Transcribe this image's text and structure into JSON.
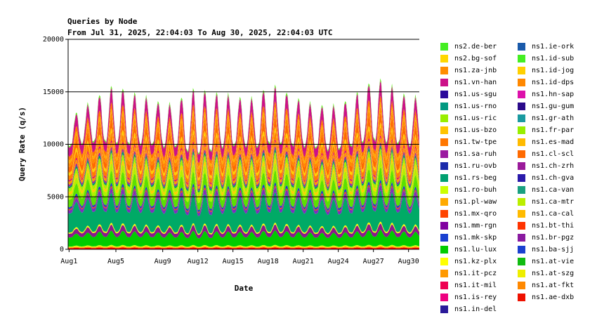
{
  "chart_data": {
    "type": "area",
    "stacked": true,
    "title": "Queries by Node",
    "subtitle": "From Jul 31, 2025, 22:04:03 To Aug 30, 2025, 22:04:03 UTC",
    "xlabel": "Date",
    "ylabel": "Query Rate (q/s)",
    "xticks": [
      "Aug1",
      "Aug5",
      "Aug9",
      "Aug12",
      "Aug15",
      "Aug18",
      "Aug21",
      "Aug24",
      "Aug27",
      "Aug30"
    ],
    "yticks": [
      "0",
      "5000",
      "10000",
      "15000",
      "20000"
    ],
    "ylim": [
      0,
      20000
    ],
    "grid": true,
    "legend_position": "right",
    "total_envelope": {
      "days": [
        1,
        2,
        3,
        4,
        5,
        6,
        7,
        8,
        9,
        10,
        11,
        12,
        13,
        14,
        15,
        16,
        17,
        18,
        19,
        20,
        21,
        22,
        23,
        24,
        25,
        26,
        27,
        28,
        29,
        30
      ],
      "peak": [
        12500,
        13500,
        14300,
        15200,
        15800,
        15300,
        14800,
        14500,
        14000,
        14000,
        15000,
        15600,
        15200,
        14900,
        14800,
        14500,
        14600,
        15800,
        15600,
        14800,
        14200,
        13900,
        13800,
        13900,
        14500,
        15300,
        16500,
        16200,
        15300,
        14700
      ],
      "trough": [
        9800,
        10200,
        10300,
        10300,
        10200,
        10100,
        10100,
        10000,
        9900,
        9900,
        9400,
        9200,
        9400,
        9800,
        9900,
        10000,
        9800,
        10100,
        10200,
        10000,
        9900,
        9700,
        9600,
        9600,
        9800,
        10300,
        10500,
        10300,
        10100,
        10000
      ]
    },
    "series": [
      {
        "name": "ns1.ae-dxb",
        "color": "#ff0000",
        "share": 0.012
      },
      {
        "name": "ns1.at-fkt",
        "color": "#ff8c00",
        "share": 0.006
      },
      {
        "name": "ns1.at-szg",
        "color": "#ffd700",
        "share": 0.005
      },
      {
        "name": "ns1.at-vie",
        "color": "#c8ff00",
        "share": 0.006
      },
      {
        "name": "ns1.ba-sjj",
        "color": "#00cc00",
        "share": 0.095
      },
      {
        "name": "ns1.br-pgz",
        "color": "#8b1a8b",
        "share": 0.04
      },
      {
        "name": "ns1.bt-thi",
        "color": "#ffff00",
        "share": 0.012
      },
      {
        "name": "ns1.ca-cal",
        "color": "#00aa66",
        "share": 0.2
      },
      {
        "name": "ns1.ca-mtr",
        "color": "#7b2fbe",
        "share": 0.035
      },
      {
        "name": "ns1.ca-van",
        "color": "#ff4500",
        "share": 0.012
      },
      {
        "name": "ns1.ch-gva",
        "color": "#1e3cc8",
        "share": 0.02
      },
      {
        "name": "ns1.ch-zrh",
        "color": "#5ce000",
        "share": 0.08
      },
      {
        "name": "ns1.cl-scl",
        "color": "#b0f000",
        "share": 0.05
      },
      {
        "name": "ns1.es-mad",
        "color": "#ffcc00",
        "share": 0.03
      },
      {
        "name": "ns1.fr-par",
        "color": "#aaee00",
        "share": 0.04
      },
      {
        "name": "ns1.gr-ath",
        "color": "#009966",
        "share": 0.02
      },
      {
        "name": "ns1.gu-gum",
        "color": "#a020a0",
        "share": 0.02
      },
      {
        "name": "ns1.hn-sap",
        "color": "#ff9900",
        "share": 0.03
      },
      {
        "name": "ns1.id-dps",
        "color": "#e00070",
        "share": 0.015
      },
      {
        "name": "ns1.id-jog",
        "color": "#ff7f00",
        "share": 0.05
      },
      {
        "name": "ns1.id-sub",
        "color": "#ffd000",
        "share": 0.03
      },
      {
        "name": "ns1.ie-ork",
        "color": "#ff6a00",
        "share": 0.06
      },
      {
        "name": "ns1.in-del",
        "color": "#ff8800",
        "share": 0.04
      },
      {
        "name": "ns1.is-rey",
        "color": "#ffaa00",
        "share": 0.03
      },
      {
        "name": "ns1.it-mil",
        "color": "#ff7700",
        "share": 0.04
      },
      {
        "name": "ns1.it-pcz",
        "color": "#cc1188",
        "share": 0.095
      },
      {
        "name": "ns1.kz-plx",
        "color": "#66ee22",
        "share": 0.015
      }
    ],
    "legend": [
      {
        "name": "ns2.de-ber",
        "color": "#44ee22"
      },
      {
        "name": "ns2.bg-sof",
        "color": "#ffd700"
      },
      {
        "name": "ns1.za-jnb",
        "color": "#ff8c00"
      },
      {
        "name": "ns1.vn-han",
        "color": "#cc1188"
      },
      {
        "name": "ns1.us-sgu",
        "color": "#2a0a9a"
      },
      {
        "name": "ns1.us-rno",
        "color": "#009980"
      },
      {
        "name": "ns1.us-ric",
        "color": "#99ee00"
      },
      {
        "name": "ns1.us-bzo",
        "color": "#ffc400"
      },
      {
        "name": "ns1.tw-tpe",
        "color": "#ff7700"
      },
      {
        "name": "ns1.sa-ruh",
        "color": "#9a1aa0"
      },
      {
        "name": "ns1.ru-ovb",
        "color": "#1a2aaa"
      },
      {
        "name": "ns1.rs-beg",
        "color": "#00a070"
      },
      {
        "name": "ns1.ro-buh",
        "color": "#ccff00"
      },
      {
        "name": "ns1.pl-waw",
        "color": "#ffaa00"
      },
      {
        "name": "ns1.mx-qro",
        "color": "#ff4400"
      },
      {
        "name": "ns1.mm-rgn",
        "color": "#8000a0"
      },
      {
        "name": "ns1.mk-skp",
        "color": "#1a40d0"
      },
      {
        "name": "ns1.lu-lux",
        "color": "#00cc00"
      },
      {
        "name": "ns1.kz-plx",
        "color": "#ffff00"
      },
      {
        "name": "ns1.it-pcz",
        "color": "#ff9900"
      },
      {
        "name": "ns1.it-mil",
        "color": "#ee0050"
      },
      {
        "name": "ns1.is-rey",
        "color": "#ee0080"
      },
      {
        "name": "ns1.in-del",
        "color": "#2a1a9a"
      },
      {
        "name": "ns1.ie-ork",
        "color": "#1a5aaa"
      },
      {
        "name": "ns1.id-sub",
        "color": "#44ee22"
      },
      {
        "name": "ns1.id-jog",
        "color": "#ffd000"
      },
      {
        "name": "ns1.id-dps",
        "color": "#ff8800"
      },
      {
        "name": "ns1.hn-sap",
        "color": "#dd11aa"
      },
      {
        "name": "ns1.gu-gum",
        "color": "#2a0a8a"
      },
      {
        "name": "ns1.gr-ath",
        "color": "#1a9aa0"
      },
      {
        "name": "ns1.fr-par",
        "color": "#99ee00"
      },
      {
        "name": "ns1.es-mad",
        "color": "#ffbb00"
      },
      {
        "name": "ns1.cl-scl",
        "color": "#ff6a00"
      },
      {
        "name": "ns1.ch-zrh",
        "color": "#9a1a9a"
      },
      {
        "name": "ns1.ch-gva",
        "color": "#2a1aaa"
      },
      {
        "name": "ns1.ca-van",
        "color": "#1aa080"
      },
      {
        "name": "ns1.ca-mtr",
        "color": "#bbee00"
      },
      {
        "name": "ns1.ca-cal",
        "color": "#ffbb00"
      },
      {
        "name": "ns1.bt-thi",
        "color": "#ff3300"
      },
      {
        "name": "ns1.br-pgz",
        "color": "#8a1aa0"
      },
      {
        "name": "ns1.ba-sjj",
        "color": "#1a40d0"
      },
      {
        "name": "ns1.at-vie",
        "color": "#11bb11"
      },
      {
        "name": "ns1.at-szg",
        "color": "#eeee00"
      },
      {
        "name": "ns1.at-fkt",
        "color": "#ff8800"
      },
      {
        "name": "ns1.ae-dxb",
        "color": "#ee1100"
      }
    ]
  }
}
